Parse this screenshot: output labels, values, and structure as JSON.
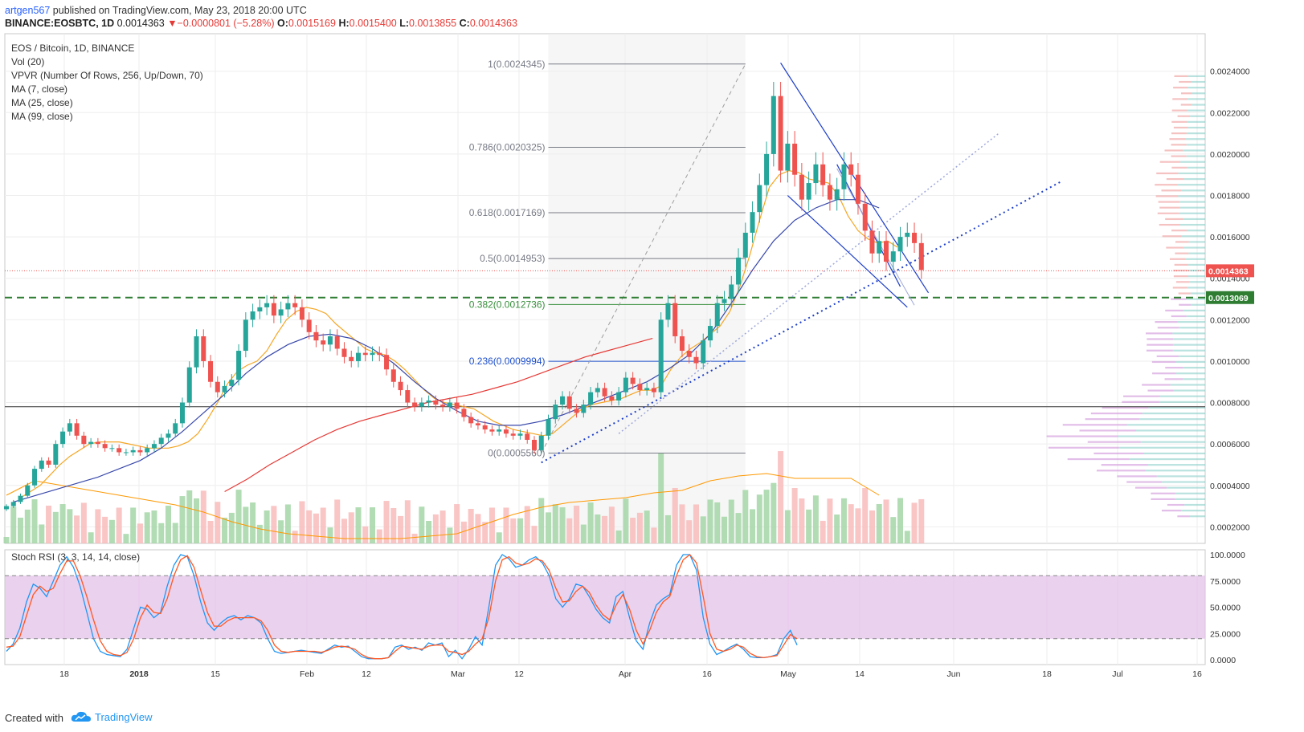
{
  "header": {
    "user": "artgen567",
    "published": " published on TradingView.com, May 23, 2018 20:00 UTC",
    "symbol": "BINANCE:EOSBTC, 1D",
    "price": "0.0014363",
    "change": "▼−0.0000801 (−5.28%)",
    "o_label": "O:",
    "o": "0.0015169",
    "h_label": "H:",
    "h": "0.0015400",
    "l_label": "L:",
    "l": "0.0013855",
    "c_label": "C:",
    "c": "0.0014363"
  },
  "legend": {
    "title": "EOS / Bitcoin, 1D, BINANCE",
    "items": [
      "Vol (20)",
      "VPVR (Number Of Rows, 256, Up/Down, 70)",
      "MA (7, close)",
      "MA (25, close)",
      "MA (99, close)"
    ]
  },
  "rsi_legend": "Stoch RSI (3, 3, 14, 14, close)",
  "footer": {
    "created": "Created with",
    "brand": "TradingView"
  },
  "colors": {
    "up": "#26a69a",
    "down": "#ef5350",
    "ma7": "#f5a623",
    "ma25": "#3949ab",
    "ma99": "#e53935",
    "fib_gray": "#787b86",
    "fib_green": "#388e3c",
    "fib_blue": "#1e4fc9",
    "rsi_fill": "#e1bee7",
    "k": "#2196f3",
    "d": "#ff5722"
  },
  "chart_data": [
    {
      "type": "candlestick",
      "title": "EOS / Bitcoin, 1D, BINANCE",
      "x_ticks": [
        "18",
        "2018",
        "15",
        "Feb",
        "12",
        "Mar",
        "12",
        "Apr",
        "16",
        "May",
        "14",
        "Jun",
        "18",
        "Jul",
        "16"
      ],
      "y_ticks": [
        "0.0024000",
        "0.0022000",
        "0.0020000",
        "0.0018000",
        "0.0016000",
        "0.0014000",
        "0.0012000",
        "0.0010000",
        "0.0008000",
        "0.0006000",
        "0.0004000",
        "0.0002000"
      ],
      "ylim": [
        0.00012,
        0.00255
      ],
      "last_price_label": "0.0014363",
      "support_label": "0.0013069",
      "close": [
        0.0003,
        0.00032,
        0.00035,
        0.0004,
        0.00048,
        0.00052,
        0.0005,
        0.0006,
        0.00066,
        0.0007,
        0.00064,
        0.0006,
        0.00061,
        0.0006,
        0.00058,
        0.00058,
        0.00056,
        0.00056,
        0.00057,
        0.00056,
        0.00058,
        0.0006,
        0.00063,
        0.00065,
        0.0007,
        0.0008,
        0.00097,
        0.00112,
        0.001,
        0.0009,
        0.00085,
        0.00088,
        0.00091,
        0.00105,
        0.0012,
        0.00124,
        0.00126,
        0.00128,
        0.00122,
        0.00125,
        0.00128,
        0.00126,
        0.0012,
        0.00114,
        0.0011,
        0.00108,
        0.00112,
        0.00106,
        0.00102,
        0.001,
        0.00104,
        0.00103,
        0.00104,
        0.00103,
        0.00096,
        0.0009,
        0.00086,
        0.0008,
        0.00078,
        0.0008,
        0.00081,
        0.00079,
        0.00078,
        0.0008,
        0.00077,
        0.00073,
        0.0007,
        0.00069,
        0.00067,
        0.00066,
        0.00067,
        0.00065,
        0.00064,
        0.00065,
        0.00062,
        0.00057,
        0.00064,
        0.00072,
        0.00079,
        0.00083,
        0.00077,
        0.00075,
        0.00079,
        0.00085,
        0.00087,
        0.00083,
        0.00081,
        0.00085,
        0.00092,
        0.00089,
        0.00086,
        0.00087,
        0.00085,
        0.0012,
        0.00128,
        0.00112,
        0.00105,
        0.00102,
        0.00099,
        0.0011,
        0.00117,
        0.00128,
        0.0013,
        0.00137,
        0.0015,
        0.00162,
        0.00172,
        0.00185,
        0.002,
        0.00228,
        0.00192,
        0.00205,
        0.0019,
        0.00178,
        0.00186,
        0.00195,
        0.00185,
        0.00178,
        0.00183,
        0.00195,
        0.0019,
        0.00176,
        0.00163,
        0.00152,
        0.00158,
        0.00148,
        0.00153,
        0.0016,
        0.00162,
        0.00157,
        0.00144
      ],
      "ma7": [
        0.00034,
        0.00037,
        0.0004,
        0.00045,
        0.0005,
        0.00054,
        0.00057,
        0.0006,
        0.00061,
        0.00061,
        0.00061,
        0.0006,
        0.00059,
        0.00058,
        0.00058,
        0.00058,
        0.00059,
        0.00061,
        0.00065,
        0.00072,
        0.0008,
        0.00089,
        0.00095,
        0.00098,
        0.001,
        0.00105,
        0.00113,
        0.0012,
        0.00124,
        0.00126,
        0.00125,
        0.00123,
        0.00118,
        0.00114,
        0.0011,
        0.00106,
        0.00104,
        0.00103,
        0.001,
        0.00096,
        0.00091,
        0.00086,
        0.00082,
        0.0008,
        0.00079,
        0.00078,
        0.00077,
        0.00074,
        0.00071,
        0.00069,
        0.00067,
        0.00066,
        0.00065,
        0.00064,
        0.00065,
        0.00069,
        0.00073,
        0.00077,
        0.00079,
        0.0008,
        0.00081,
        0.00082,
        0.00084,
        0.00086,
        0.00086,
        0.00088,
        0.00096,
        0.00102,
        0.00106,
        0.00109,
        0.00113,
        0.00117,
        0.00124,
        0.00136,
        0.00151,
        0.00168,
        0.00184,
        0.0019,
        0.00192,
        0.00191,
        0.00188,
        0.00187,
        0.00186,
        0.0018,
        0.0017,
        0.00163,
        0.00159,
        0.00157,
        0.00158,
        0.00155
      ],
      "ma25": [
        0.00032,
        0.00035,
        0.00038,
        0.00041,
        0.00044,
        0.00048,
        0.00052,
        0.00058,
        0.00066,
        0.00075,
        0.00084,
        0.00094,
        0.00102,
        0.00108,
        0.00112,
        0.00113,
        0.00111,
        0.00106,
        0.00099,
        0.0009,
        0.00082,
        0.00076,
        0.00071,
        0.00069,
        0.00069,
        0.00071,
        0.00074,
        0.00078,
        0.00082,
        0.00086,
        0.0009,
        0.00096,
        0.00103,
        0.00113,
        0.00128,
        0.00144,
        0.00158,
        0.00168,
        0.00174,
        0.00178,
        0.00178,
        0.00174
      ],
      "ma99": [
        0.00037,
        0.00043,
        0.0005,
        0.00056,
        0.00062,
        0.00067,
        0.00071,
        0.00074,
        0.00077,
        0.0008,
        0.00082,
        0.00084,
        0.00087,
        0.0009,
        0.00094,
        0.00098,
        0.00102,
        0.00105,
        0.00108,
        0.00111
      ],
      "volume_ma": [
        0.00032,
        0.00038,
        0.00036,
        0.00034,
        0.00032,
        0.0003,
        0.00028,
        0.00025,
        0.00021,
        0.00018,
        0.00016,
        0.00015,
        0.00014,
        0.00014,
        0.00014,
        0.00015,
        0.00016,
        0.0002,
        0.00024,
        0.00027,
        0.00029,
        0.0003,
        0.00031,
        0.00033,
        0.00034,
        0.00038,
        0.0004,
        0.00041,
        0.00039,
        0.00039,
        0.00039,
        0.00032
      ],
      "fibonacci": [
        {
          "label": "1(0.0024345)",
          "value": 0.0024345
        },
        {
          "label": "0.786(0.0020325)",
          "value": 0.0020325
        },
        {
          "label": "0.618(0.0017169)",
          "value": 0.0017169
        },
        {
          "label": "0.5(0.0014953)",
          "value": 0.0014953
        },
        {
          "label": "0.382(0.0012736)",
          "value": 0.0012736
        },
        {
          "label": "0.236(0.0009994)",
          "value": 0.0009994
        },
        {
          "label": "0(0.0005560)",
          "value": 0.000556
        }
      ]
    },
    {
      "type": "line",
      "title": "Stoch RSI (3, 3, 14, 14, close)",
      "y_ticks": [
        "100.0000",
        "75.0000",
        "50.0000",
        "25.0000",
        "0.0000"
      ],
      "ylim": [
        0,
        100
      ],
      "band": [
        20,
        80
      ],
      "series": [
        {
          "name": "K",
          "values": [
            8,
            15,
            30,
            55,
            72,
            68,
            60,
            75,
            90,
            98,
            88,
            70,
            45,
            20,
            8,
            5,
            4,
            3,
            10,
            30,
            50,
            48,
            40,
            45,
            70,
            90,
            100,
            98,
            80,
            55,
            35,
            28,
            35,
            40,
            42,
            38,
            42,
            40,
            35,
            20,
            8,
            6,
            7,
            8,
            9,
            8,
            7,
            6,
            10,
            14,
            12,
            13,
            8,
            3,
            1,
            1,
            1,
            2,
            12,
            14,
            10,
            12,
            9,
            16,
            14,
            16,
            3,
            9,
            1,
            10,
            22,
            14,
            50,
            90,
            100,
            96,
            88,
            90,
            95,
            98,
            92,
            80,
            58,
            50,
            58,
            72,
            70,
            60,
            48,
            40,
            35,
            60,
            65,
            40,
            18,
            10,
            35,
            52,
            58,
            62,
            90,
            100,
            100,
            85,
            40,
            15,
            5,
            8,
            12,
            15,
            10,
            3,
            2,
            2,
            3,
            5,
            20,
            28,
            14
          ]
        },
        {
          "name": "D",
          "values": [
            12,
            13,
            22,
            42,
            62,
            70,
            65,
            68,
            82,
            94,
            94,
            80,
            60,
            38,
            18,
            8,
            5,
            4,
            7,
            20,
            40,
            52,
            45,
            44,
            58,
            80,
            95,
            99,
            88,
            66,
            45,
            32,
            32,
            37,
            40,
            40,
            40,
            40,
            37,
            28,
            14,
            8,
            7,
            8,
            8,
            8,
            8,
            7,
            9,
            12,
            13,
            12,
            10,
            5,
            2,
            1,
            1,
            2,
            8,
            13,
            12,
            11,
            10,
            13,
            14,
            14,
            8,
            7,
            5,
            8,
            15,
            20,
            40,
            75,
            95,
            98,
            92,
            90,
            92,
            96,
            94,
            85,
            68,
            55,
            56,
            65,
            70,
            64,
            52,
            43,
            38,
            52,
            62,
            48,
            28,
            15,
            28,
            45,
            55,
            60,
            80,
            95,
            100,
            92,
            60,
            25,
            10,
            8,
            10,
            14,
            12,
            6,
            3,
            2,
            3,
            4,
            14,
            24,
            20
          ]
        }
      ],
      "x_ticks": [
        "18",
        "2018",
        "15",
        "Feb",
        "12",
        "Mar",
        "12",
        "Apr",
        "16",
        "May",
        "14",
        "Jun",
        "18",
        "Jul",
        "16"
      ]
    }
  ]
}
